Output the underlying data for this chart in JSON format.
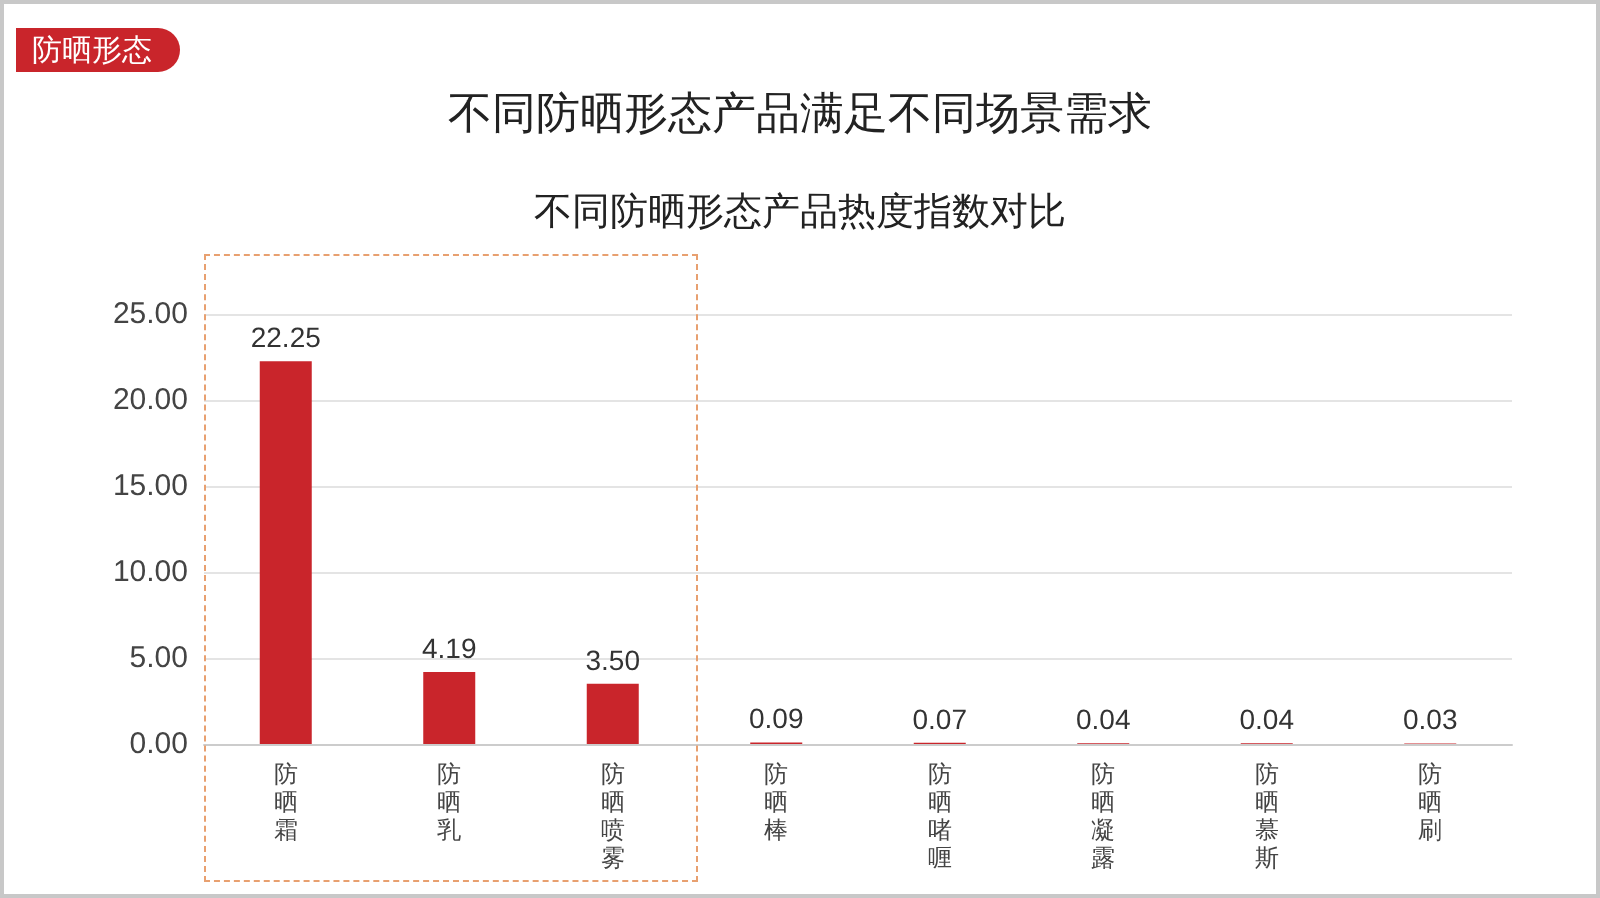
{
  "chart_data": {
    "type": "bar",
    "title": "不同防晒形态产品满足不同场景需求",
    "subtitle": "不同防晒形态产品热度指数对比",
    "annotations": [
      "防晒形态"
    ],
    "categories": [
      "防晒霜",
      "防晒乳",
      "防晒喷雾",
      "防晒棒",
      "防晒啫喱",
      "防晒凝露",
      "防晒慕斯",
      "防晒刷"
    ],
    "values": [
      22.25,
      4.19,
      3.5,
      0.09,
      0.07,
      0.04,
      0.04,
      0.03
    ],
    "value_labels": [
      "22.25",
      "4.19",
      "3.50",
      "0.09",
      "0.07",
      "0.04",
      "0.04",
      "0.03"
    ],
    "color": "#c9252b",
    "ylim": [
      0,
      25
    ],
    "yticks": [
      {
        "value": 0,
        "label": "0.00"
      },
      {
        "value": 5,
        "label": "5.00"
      },
      {
        "value": 10,
        "label": "10.00"
      },
      {
        "value": 15,
        "label": "15.00"
      },
      {
        "value": 20,
        "label": "20.00"
      },
      {
        "value": 25,
        "label": "25.00"
      }
    ],
    "grid": "y"
  }
}
